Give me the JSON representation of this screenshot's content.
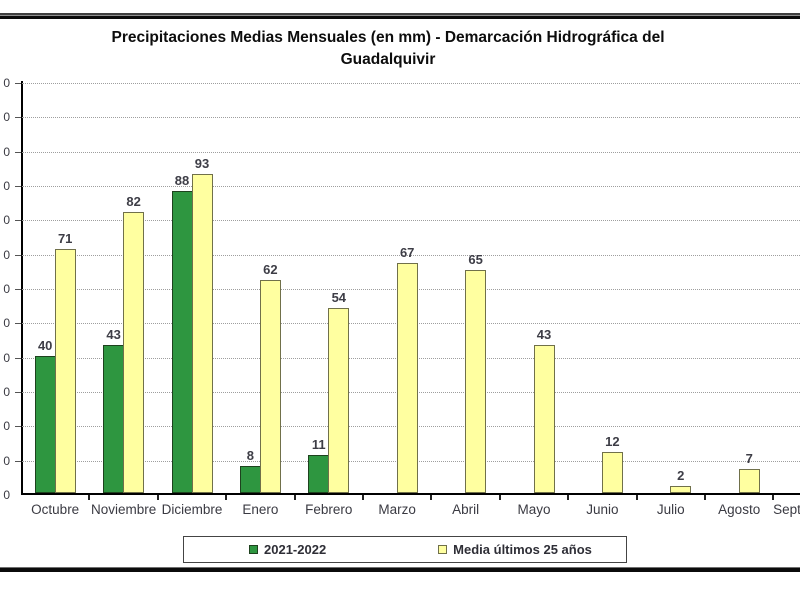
{
  "chart_data": {
    "type": "bar",
    "title": "Precipitaciones Medias Mensuales (en mm) - Demarcación Hidrográfica del Guadalquivir",
    "categories": [
      "Octubre",
      "Noviembre",
      "Diciembre",
      "Enero",
      "Febrero",
      "Marzo",
      "Abril",
      "Mayo",
      "Junio",
      "Julio",
      "Agosto",
      "Septiembre"
    ],
    "series": [
      {
        "name": "2021-2022",
        "fill": "#2e9640",
        "border": "#1e421e",
        "values": [
          40,
          43,
          88,
          8,
          11,
          0,
          0,
          0,
          0,
          0,
          0,
          null
        ]
      },
      {
        "name": "Media últimos 25 años",
        "fill": "#ffffa0",
        "border": "#70704a",
        "values": [
          71,
          82,
          93,
          62,
          54,
          67,
          65,
          43,
          12,
          2,
          7,
          null
        ]
      }
    ],
    "ylim": [
      0,
      120
    ],
    "y_tick_step": 10,
    "y_tick_visible_text": "0",
    "xlabel": "",
    "ylabel": "",
    "grid": true,
    "legend_position": "bottom"
  },
  "colors": {
    "grid": "#9e9e9e",
    "axis": "#000000",
    "value_label": "#3d3d46",
    "tick_label": "#3a3a42"
  }
}
